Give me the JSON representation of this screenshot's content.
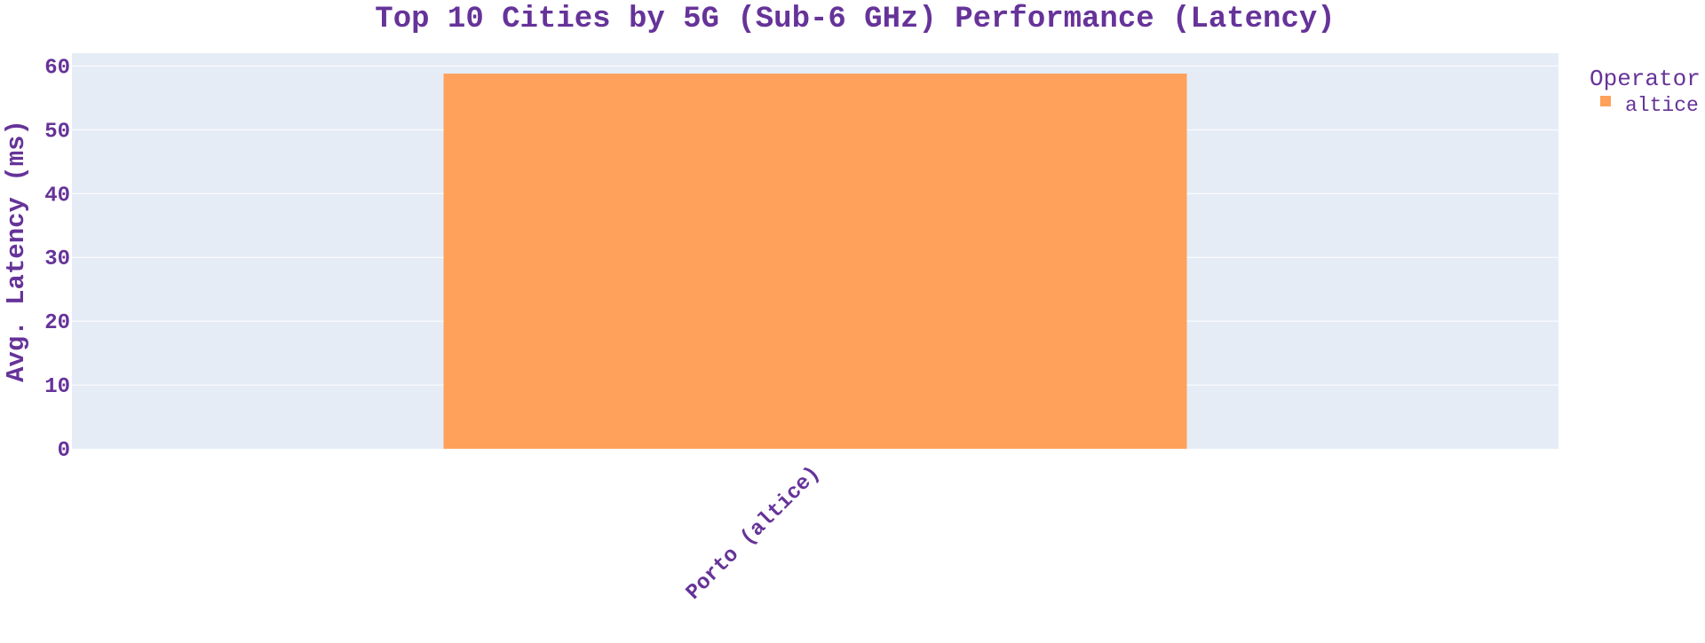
{
  "chart_data": {
    "type": "bar",
    "title": "Top 10 Cities by 5G (Sub-6 GHz) Performance (Latency)",
    "xlabel": "",
    "ylabel": "Avg. Latency (ms)",
    "categories": [
      "Porto (altice)"
    ],
    "series": [
      {
        "name": "altice",
        "color": "#FFA15A",
        "values": [
          58.8
        ]
      }
    ],
    "ylim": [
      0,
      62
    ],
    "yticks": [
      0,
      10,
      20,
      30,
      40,
      50,
      60
    ],
    "grid": true,
    "legend_title": "Operator",
    "legend_position": "top-right"
  },
  "colors": {
    "text": "#663399",
    "plot_background": "#E5ECF6",
    "gridline": "#ffffff"
  }
}
